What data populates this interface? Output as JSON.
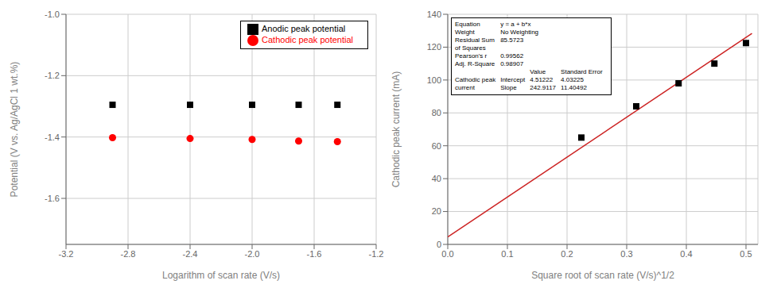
{
  "chart_data": [
    {
      "type": "scatter",
      "xlabel": "Logarithm of scan rate (V/s)",
      "ylabel": "Potential (V vs. Ag/AgCl 1 wt.%)",
      "xlim": [
        -3.2,
        -1.2
      ],
      "ylim": [
        -1.75,
        -1.0
      ],
      "xticks": [
        -3.2,
        -2.8,
        -2.4,
        {
          "value": -2,
          "label": "-2.0"
        },
        -1.6,
        -1.2
      ],
      "yticks": [
        {
          "value": -1,
          "label": "-1.0"
        },
        -1.2,
        -1.4,
        -1.6
      ],
      "grid": true,
      "legend": "upper right",
      "series": [
        {
          "name": "Anodic peak potential",
          "type": "scatter",
          "color": "black",
          "marker": "square",
          "x": [
            -2.9,
            -2.4,
            -2.0,
            -1.7,
            -1.45
          ],
          "values": [
            -1.295,
            -1.295,
            -1.295,
            -1.295,
            -1.295
          ]
        },
        {
          "name": "Cathodic peak potential",
          "type": "scatter",
          "color": "red",
          "marker": "circle",
          "x": [
            -2.9,
            -2.4,
            -2.0,
            -1.7,
            -1.45
          ],
          "values": [
            -1.402,
            -1.405,
            -1.408,
            -1.413,
            -1.415
          ]
        }
      ]
    },
    {
      "type": "scatter",
      "xlabel": "Square root of scan rate (V/s)^1/2",
      "ylabel": "Cathodic peak current (mA)",
      "xlim": [
        0.0,
        0.52
      ],
      "ylim": [
        0,
        140
      ],
      "xticks": [
        {
          "value": 0,
          "label": "0.0"
        },
        0.1,
        0.2,
        0.3,
        0.4,
        0.5
      ],
      "yticks": [
        0,
        20,
        40,
        60,
        80,
        100,
        120,
        140
      ],
      "grid": true,
      "series": [
        {
          "type": "line",
          "color": "#cc2222",
          "x": [
            0.0,
            0.51
          ],
          "values": [
            4.51222,
            128.397187
          ]
        },
        {
          "type": "scatter",
          "color": "black",
          "marker": "square",
          "x": [
            0.224,
            0.316,
            0.387,
            0.447,
            0.5
          ],
          "values": [
            65.0,
            84.0,
            98.0,
            110.0,
            122.5
          ]
        }
      ],
      "annotation": {
        "stats": [
          [
            "Equation",
            "y = a + b*x"
          ],
          [
            "Weight",
            "No Weighting"
          ],
          [
            "Residual Sum",
            "85.5723"
          ],
          [
            "of Squares"
          ],
          [
            "Pearson's r",
            "0.99562"
          ],
          [
            "Adj. R-Square",
            "0.98907"
          ]
        ],
        "table": {
          "columns": [
            "Value",
            "Standard Error"
          ],
          "rows": [
            [
              "Cathodic peak",
              "Intercept",
              "4.51222",
              "4.03225"
            ],
            [
              "current",
              "Slope",
              "242.9117",
              "11.40492"
            ]
          ]
        }
      }
    }
  ]
}
